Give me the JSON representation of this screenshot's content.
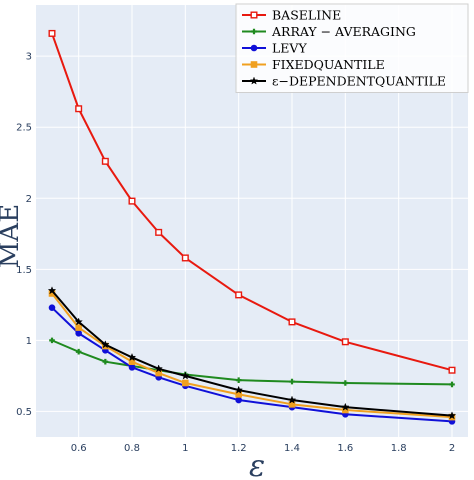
{
  "chart_data": {
    "type": "line",
    "xlabel": "ε",
    "ylabel": "MAE",
    "xlim": [
      0.44,
      2.06
    ],
    "ylim": [
      0.32,
      3.36
    ],
    "x_ticks": [
      0.6,
      0.8,
      1,
      1.2,
      1.4,
      1.6,
      1.8,
      2
    ],
    "x_tick_labels": [
      "0.6",
      "0.8",
      "1",
      "1.2",
      "1.4",
      "1.6",
      "1.8",
      "2"
    ],
    "y_ticks": [
      0.5,
      1,
      1.5,
      2,
      2.5,
      3
    ],
    "y_tick_labels": [
      "0.5",
      "1",
      "1.5",
      "2",
      "2.5",
      "3"
    ],
    "grid": true,
    "legend_position": "top-right",
    "plot_background": "#e5ecf6",
    "grid_color": "#ffffff",
    "series": [
      {
        "name": "BASELINE",
        "color": "#e8190f",
        "marker": "square-open",
        "x": [
          0.5,
          0.6,
          0.7,
          0.8,
          0.9,
          1.0,
          1.2,
          1.4,
          1.6,
          2.0
        ],
        "values": [
          3.16,
          2.63,
          2.26,
          1.98,
          1.76,
          1.58,
          1.32,
          1.13,
          0.99,
          0.79
        ]
      },
      {
        "name": "ARRAY − AVERAGING",
        "color": "#1f8a1f",
        "marker": "cross",
        "x": [
          0.5,
          0.6,
          0.7,
          0.8,
          0.9,
          1.0,
          1.2,
          1.4,
          1.6,
          2.0
        ],
        "values": [
          1.0,
          0.92,
          0.85,
          0.82,
          0.79,
          0.76,
          0.72,
          0.71,
          0.7,
          0.69
        ]
      },
      {
        "name": "LEVY",
        "color": "#1010d8",
        "marker": "circle",
        "x": [
          0.5,
          0.6,
          0.7,
          0.8,
          0.9,
          1.0,
          1.2,
          1.4,
          1.6,
          2.0
        ],
        "values": [
          1.23,
          1.05,
          0.93,
          0.81,
          0.74,
          0.68,
          0.58,
          0.53,
          0.48,
          0.43
        ]
      },
      {
        "name": "FIXEDQUANTILE",
        "color": "#f0a020",
        "marker": "square",
        "x": [
          0.5,
          0.6,
          0.7,
          0.8,
          0.9,
          1.0,
          1.2,
          1.4,
          1.6,
          2.0
        ],
        "values": [
          1.33,
          1.09,
          0.96,
          0.85,
          0.77,
          0.7,
          0.62,
          0.55,
          0.51,
          0.46
        ]
      },
      {
        "name": "ε−DEPENDENTQUANTILE",
        "color": "#000000",
        "marker": "star",
        "x": [
          0.5,
          0.6,
          0.7,
          0.8,
          0.9,
          1.0,
          1.2,
          1.4,
          1.6,
          2.0
        ],
        "values": [
          1.35,
          1.13,
          0.97,
          0.88,
          0.8,
          0.75,
          0.65,
          0.58,
          0.53,
          0.47
        ]
      }
    ]
  }
}
